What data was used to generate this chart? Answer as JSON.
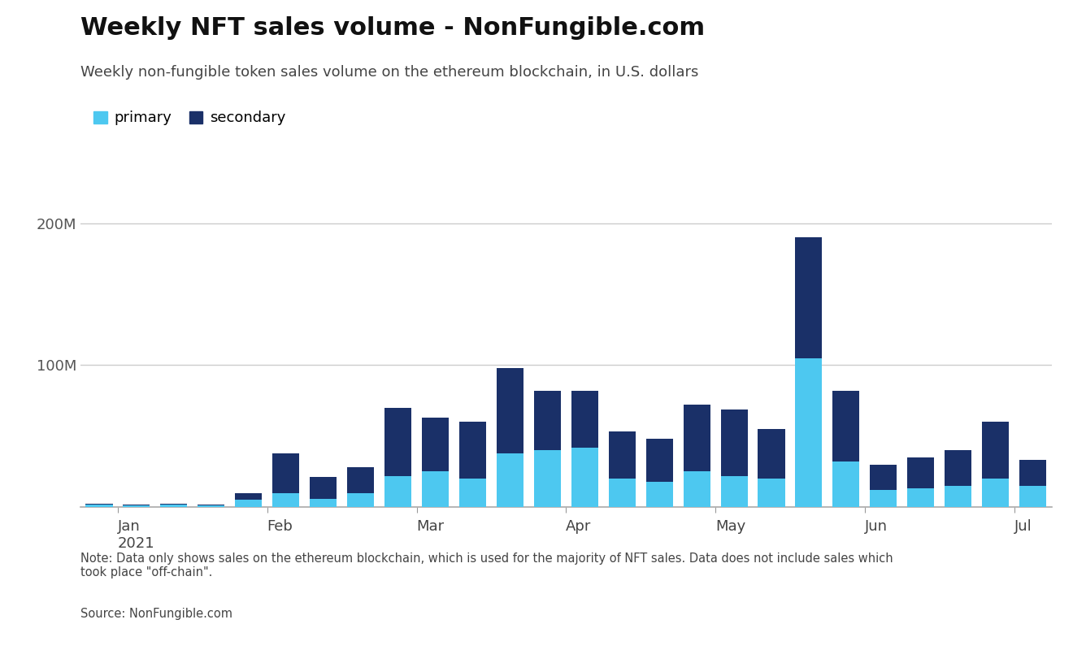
{
  "title": "Weekly NFT sales volume - NonFungible.com",
  "subtitle": "Weekly non-fungible token sales volume on the ethereum blockchain, in U.S. dollars",
  "note": "Note: Data only shows sales on the ethereum blockchain, which is used for the majority of NFT sales. Data does not include sales which\ntook place \"off-chain\".",
  "source": "Source: NonFungible.com",
  "primary_color": "#4dc8f0",
  "secondary_color": "#1a3068",
  "background_color": "#ffffff",
  "grid_color": "#cccccc",
  "legend_primary": "primary",
  "legend_secondary": "secondary",
  "ylim_max": 220000000,
  "yticks": [
    0,
    100000000,
    200000000
  ],
  "ytick_labels": [
    "",
    "100M",
    "200M"
  ],
  "num_weeks": 26,
  "primary_values": [
    1500000,
    1000000,
    1500000,
    1200000,
    5000000,
    10000000,
    6000000,
    10000000,
    22000000,
    25000000,
    20000000,
    38000000,
    40000000,
    42000000,
    20000000,
    18000000,
    25000000,
    22000000,
    20000000,
    105000000,
    32000000,
    12000000,
    13000000,
    15000000,
    20000000,
    15000000
  ],
  "secondary_values": [
    1000000,
    500000,
    1000000,
    800000,
    5000000,
    28000000,
    15000000,
    18000000,
    48000000,
    38000000,
    40000000,
    60000000,
    42000000,
    40000000,
    33000000,
    30000000,
    47000000,
    47000000,
    35000000,
    85000000,
    50000000,
    18000000,
    22000000,
    25000000,
    40000000,
    18000000
  ],
  "month_tick_x": [
    0.5,
    4.5,
    8.5,
    12.5,
    16.5,
    20.5,
    24.5
  ],
  "month_labels": [
    "Jan\n2021",
    "Feb",
    "Mar",
    "Apr",
    "May",
    "Jun",
    "Jul"
  ],
  "bar_xlim": [
    -0.5,
    25.5
  ]
}
